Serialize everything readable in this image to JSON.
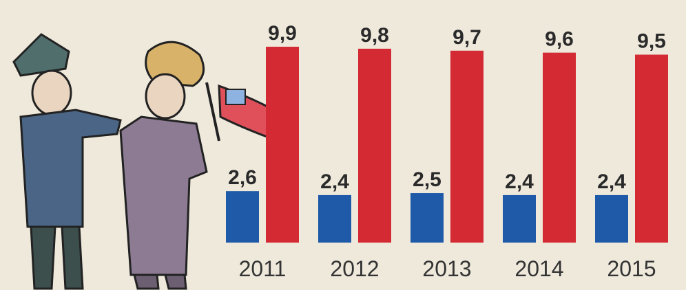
{
  "chart_data": {
    "type": "bar",
    "categories": [
      "2011",
      "2012",
      "2013",
      "2014",
      "2015"
    ],
    "series": [
      {
        "color": "#1f5aa8",
        "values": [
          2.6,
          2.4,
          2.5,
          2.4,
          2.4
        ],
        "value_labels": [
          "2,6",
          "2,4",
          "2,5",
          "2,4",
          "2,4"
        ]
      },
      {
        "color": "#d42a33",
        "values": [
          9.9,
          9.8,
          9.7,
          9.6,
          9.5
        ],
        "value_labels": [
          "9,9",
          "9,8",
          "9,7",
          "9,6",
          "9,5"
        ]
      }
    ]
  }
}
